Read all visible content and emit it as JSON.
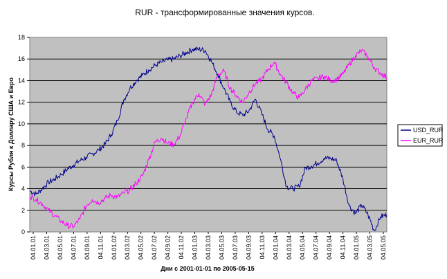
{
  "chart_data": {
    "type": "line",
    "title": "RUR - трансформированные значения курсов.",
    "xlabel": "Дни с 2001-01-01 по 2005-05-15",
    "ylabel": "Курсы Рубля к Доллару США и Евро",
    "ylim": [
      0,
      18
    ],
    "yticks": [
      0,
      2,
      4,
      6,
      8,
      10,
      12,
      14,
      16,
      18
    ],
    "x_range": [
      "04.01.01",
      "04.05.05"
    ],
    "x_tick_labels": [
      "04.01.01",
      "04.03.01",
      "04.05.01",
      "04.07.01",
      "04.09.01",
      "04.11.01",
      "04.01.02",
      "04.03.02",
      "04.05.02",
      "04.07.02",
      "04.09.02",
      "04.11.02",
      "04.01.03",
      "04.03.03",
      "04.05.03",
      "04.07.03",
      "04.09.03",
      "04.11.03",
      "04.01.04",
      "04.03.04",
      "04.05.04",
      "04.07.04",
      "04.09.04",
      "04.11.04",
      "04.01.05",
      "04.03.05",
      "04.05.05"
    ],
    "grid": true,
    "legend_position": "right",
    "series": [
      {
        "name": "USD_RUR",
        "color": "#00008b",
        "values": [
          3.8,
          3.5,
          4.0,
          4.6,
          4.9,
          5.3,
          5.8,
          6.2,
          6.6,
          6.9,
          7.2,
          7.6,
          8.1,
          9.0,
          10.3,
          12.2,
          13.3,
          14.0,
          14.5,
          15.0,
          15.4,
          15.7,
          15.9,
          16.0,
          16.3,
          16.6,
          16.9,
          16.9,
          16.8,
          15.8,
          14.6,
          13.3,
          12.0,
          11.1,
          10.8,
          11.2,
          12.3,
          11.0,
          9.5,
          8.9,
          6.8,
          4.2,
          4.0,
          4.2,
          5.9,
          6.1,
          6.4,
          6.8,
          6.8,
          6.6,
          4.9,
          2.4,
          1.7,
          2.5,
          1.6,
          0.1,
          1.4,
          1.6
        ]
      },
      {
        "name": "EUR_RUR",
        "color": "#ff00ff",
        "values": [
          3.3,
          3.0,
          2.6,
          2.0,
          1.5,
          1.0,
          0.6,
          0.5,
          1.2,
          2.4,
          3.0,
          2.7,
          3.1,
          3.4,
          3.2,
          3.6,
          3.9,
          4.5,
          5.2,
          6.7,
          8.3,
          8.7,
          8.2,
          8.1,
          8.9,
          10.5,
          12.0,
          12.8,
          11.8,
          12.7,
          14.5,
          14.9,
          13.3,
          12.6,
          12.0,
          12.9,
          13.7,
          14.1,
          15.0,
          15.7,
          14.6,
          13.8,
          12.9,
          12.4,
          13.2,
          14.0,
          14.2,
          14.4,
          14.0,
          14.1,
          14.6,
          15.5,
          16.3,
          16.8,
          16.2,
          15.2,
          14.7,
          14.3
        ]
      }
    ]
  }
}
